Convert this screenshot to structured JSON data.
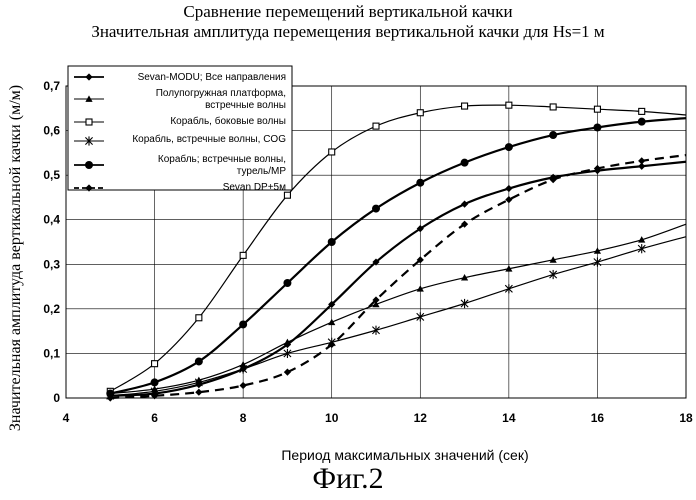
{
  "chart_data": {
    "type": "line",
    "title": "Сравнение перемещений вертикальной качки",
    "subtitle": "Значительная амплитуда перемещения вертикальной качки для Hs=1 м",
    "xlabel": "Период максимальных значений (сек)",
    "ylabel": "Значительная амплитуда вертикальной качки (м/м)",
    "xlim": [
      4,
      18
    ],
    "ylim": [
      0,
      0.7
    ],
    "xticks": [
      4,
      6,
      8,
      10,
      12,
      14,
      16,
      18
    ],
    "yticks": [
      0,
      0.1,
      0.2,
      0.3,
      0.4,
      0.5,
      0.6,
      0.7
    ],
    "xtick_labels": [
      "4",
      "6",
      "8",
      "10",
      "12",
      "14",
      "16",
      "18"
    ],
    "ytick_labels": [
      "0",
      "0,1",
      "0,2",
      "0,3",
      "0,4",
      "0,5",
      "0,6",
      "0,7"
    ],
    "grid": true,
    "legend_position": "top-left",
    "series": [
      {
        "name": "Sevan-MODU; Все направления",
        "marker": "diamond",
        "dash": "solid",
        "width": 2.2,
        "x": [
          5,
          6,
          7,
          8,
          9,
          10,
          11,
          12,
          13,
          14,
          15,
          16,
          17,
          18
        ],
        "y": [
          0.005,
          0.01,
          0.03,
          0.065,
          0.12,
          0.21,
          0.305,
          0.38,
          0.435,
          0.47,
          0.495,
          0.51,
          0.52,
          0.53
        ]
      },
      {
        "name": "Полупогружная платформа, встречные волны",
        "marker": "triangle",
        "dash": "solid",
        "width": 1.2,
        "x": [
          5,
          6,
          7,
          8,
          9,
          10,
          11,
          12,
          13,
          14,
          15,
          16,
          17,
          18
        ],
        "y": [
          0.01,
          0.02,
          0.04,
          0.075,
          0.125,
          0.17,
          0.21,
          0.245,
          0.27,
          0.29,
          0.31,
          0.33,
          0.355,
          0.39
        ]
      },
      {
        "name": "Корабль, боковые волны",
        "marker": "square",
        "dash": "solid",
        "width": 1.2,
        "x": [
          5,
          6,
          7,
          8,
          9,
          10,
          11,
          12,
          13,
          14,
          15,
          16,
          17,
          18
        ],
        "y": [
          0.015,
          0.077,
          0.18,
          0.32,
          0.455,
          0.552,
          0.61,
          0.64,
          0.655,
          0.657,
          0.653,
          0.648,
          0.643,
          0.635
        ]
      },
      {
        "name": "Корабль, встречные волны, COG",
        "marker": "star",
        "dash": "solid",
        "width": 1.2,
        "x": [
          5,
          6,
          7,
          8,
          9,
          10,
          11,
          12,
          13,
          14,
          15,
          16,
          17,
          18
        ],
        "y": [
          0.005,
          0.015,
          0.035,
          0.065,
          0.1,
          0.125,
          0.152,
          0.182,
          0.212,
          0.245,
          0.277,
          0.305,
          0.335,
          0.362
        ]
      },
      {
        "name": "Корабль; встречные волны, турель/MP",
        "marker": "circle",
        "dash": "solid",
        "width": 2.2,
        "x": [
          5,
          6,
          7,
          8,
          9,
          10,
          11,
          12,
          13,
          14,
          15,
          16,
          17,
          18
        ],
        "y": [
          0.01,
          0.035,
          0.082,
          0.165,
          0.258,
          0.35,
          0.425,
          0.483,
          0.528,
          0.563,
          0.59,
          0.607,
          0.62,
          0.628
        ]
      },
      {
        "name": "Sevan DP+5м",
        "marker": "diamond",
        "dash": "dashed",
        "width": 2.2,
        "x": [
          5,
          6,
          7,
          8,
          9,
          10,
          11,
          12,
          13,
          14,
          15,
          16,
          17,
          18
        ],
        "y": [
          0.0,
          0.005,
          0.013,
          0.028,
          0.058,
          0.12,
          0.22,
          0.31,
          0.39,
          0.445,
          0.49,
          0.515,
          0.532,
          0.545
        ]
      }
    ]
  },
  "figure_label": "Фиг.2"
}
